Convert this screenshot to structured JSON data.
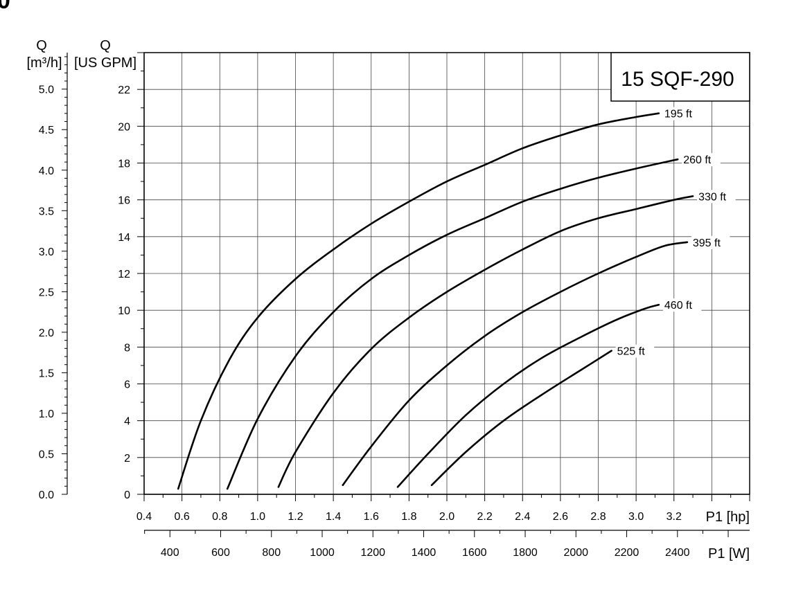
{
  "corner_text": "0",
  "chart_data": {
    "type": "line",
    "title": "15 SQF-290",
    "x_axis": {
      "label": "P1 [hp]",
      "range": [
        0.4,
        3.6
      ],
      "tick_labels": [
        "0.4",
        "0.6",
        "0.8",
        "1.0",
        "1.2",
        "1.4",
        "1.6",
        "1.8",
        "2.0",
        "2.2",
        "2.4",
        "2.6",
        "2.8",
        "3.0",
        "3.2"
      ]
    },
    "x2_axis": {
      "label": "P1 [W]",
      "unit_conversion": 745.7,
      "tick_labels": [
        "400",
        "600",
        "800",
        "1000",
        "1200",
        "1400",
        "1600",
        "1800",
        "2000",
        "2200",
        "2400"
      ]
    },
    "y_axis": {
      "label_line1": "Q",
      "label_line2": "[US GPM]",
      "range": [
        0,
        24
      ],
      "tick_labels": [
        "0",
        "2",
        "4",
        "6",
        "8",
        "10",
        "12",
        "14",
        "16",
        "18",
        "20",
        "22"
      ]
    },
    "y2_axis": {
      "label_line1": "Q",
      "label_line2": "[m³/h]",
      "unit_factor": 0.2271,
      "tick_labels": [
        "0.0",
        "0.5",
        "1.0",
        "1.5",
        "2.0",
        "2.5",
        "3.0",
        "3.5",
        "4.0",
        "4.5",
        "5.0"
      ]
    },
    "grid": true,
    "series": [
      {
        "name": "195 ft",
        "points": [
          [
            0.58,
            0.3
          ],
          [
            0.7,
            4.0
          ],
          [
            0.85,
            7.3
          ],
          [
            1.0,
            9.6
          ],
          [
            1.2,
            11.7
          ],
          [
            1.4,
            13.3
          ],
          [
            1.6,
            14.7
          ],
          [
            1.8,
            15.9
          ],
          [
            2.0,
            17.0
          ],
          [
            2.2,
            17.9
          ],
          [
            2.4,
            18.8
          ],
          [
            2.6,
            19.5
          ],
          [
            2.8,
            20.1
          ],
          [
            3.0,
            20.5
          ],
          [
            3.12,
            20.7
          ]
        ]
      },
      {
        "name": "260 ft",
        "points": [
          [
            0.84,
            0.3
          ],
          [
            1.0,
            4.1
          ],
          [
            1.2,
            7.5
          ],
          [
            1.4,
            9.9
          ],
          [
            1.6,
            11.7
          ],
          [
            1.8,
            13.0
          ],
          [
            2.0,
            14.1
          ],
          [
            2.2,
            15.0
          ],
          [
            2.4,
            15.9
          ],
          [
            2.6,
            16.6
          ],
          [
            2.8,
            17.2
          ],
          [
            3.0,
            17.7
          ],
          [
            3.22,
            18.2
          ]
        ]
      },
      {
        "name": "330 ft",
        "points": [
          [
            1.11,
            0.4
          ],
          [
            1.2,
            2.3
          ],
          [
            1.4,
            5.5
          ],
          [
            1.6,
            7.9
          ],
          [
            1.8,
            9.6
          ],
          [
            2.0,
            11.0
          ],
          [
            2.2,
            12.2
          ],
          [
            2.4,
            13.3
          ],
          [
            2.6,
            14.3
          ],
          [
            2.8,
            15.0
          ],
          [
            3.0,
            15.5
          ],
          [
            3.2,
            16.0
          ],
          [
            3.3,
            16.2
          ]
        ]
      },
      {
        "name": "395 ft",
        "points": [
          [
            1.45,
            0.5
          ],
          [
            1.6,
            2.6
          ],
          [
            1.8,
            5.1
          ],
          [
            2.0,
            7.0
          ],
          [
            2.2,
            8.6
          ],
          [
            2.4,
            9.9
          ],
          [
            2.6,
            11.0
          ],
          [
            2.8,
            12.0
          ],
          [
            3.0,
            12.9
          ],
          [
            3.15,
            13.5
          ],
          [
            3.27,
            13.7
          ]
        ]
      },
      {
        "name": "460 ft",
        "points": [
          [
            1.74,
            0.4
          ],
          [
            1.9,
            2.2
          ],
          [
            2.1,
            4.3
          ],
          [
            2.3,
            6.0
          ],
          [
            2.5,
            7.4
          ],
          [
            2.7,
            8.5
          ],
          [
            2.9,
            9.5
          ],
          [
            3.05,
            10.1
          ],
          [
            3.12,
            10.3
          ]
        ]
      },
      {
        "name": "525 ft",
        "points": [
          [
            1.92,
            0.5
          ],
          [
            2.1,
            2.3
          ],
          [
            2.3,
            4.0
          ],
          [
            2.5,
            5.4
          ],
          [
            2.7,
            6.7
          ],
          [
            2.87,
            7.8
          ]
        ]
      }
    ]
  }
}
